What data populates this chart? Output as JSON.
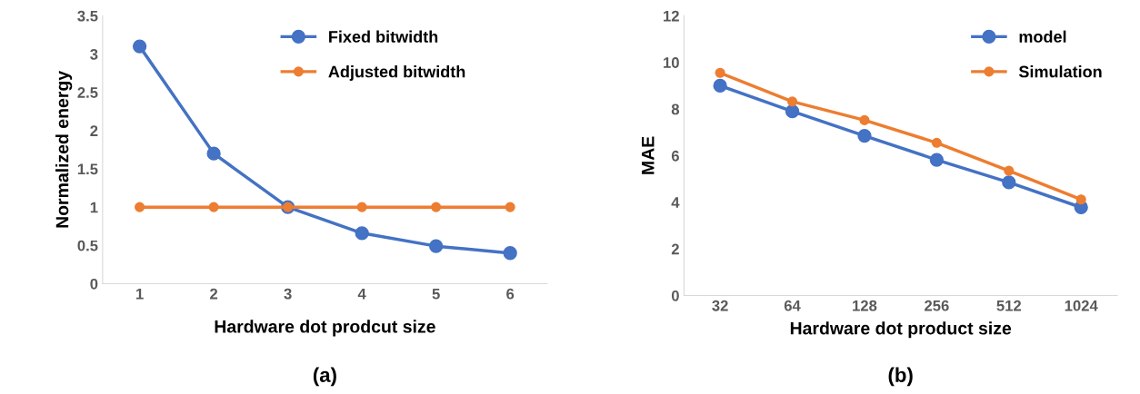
{
  "chart_data": [
    {
      "type": "line",
      "categories": [
        "1",
        "2",
        "3",
        "4",
        "5",
        "6"
      ],
      "xlabel": "Hardware dot prodcut size",
      "ylabel": "Normalized energy",
      "ylim": [
        0,
        3.5
      ],
      "yticks": [
        0,
        0.5,
        1,
        1.5,
        2,
        2.5,
        3,
        3.5
      ],
      "marker": "circle",
      "legend": "top right",
      "grid": false,
      "annotations": [
        "(a)"
      ],
      "series": [
        {
          "name": "Fixed bitwidth",
          "color": "#4472c4",
          "values": [
            3.1,
            1.7,
            1.0,
            0.66,
            0.49,
            0.4
          ]
        },
        {
          "name": "Adjusted bitwidth",
          "color": "#ed7d31",
          "values": [
            1,
            1,
            1,
            1,
            1,
            1
          ]
        }
      ]
    },
    {
      "type": "line",
      "categories": [
        "32",
        "64",
        "128",
        "256",
        "512",
        "1024"
      ],
      "xlabel": "Hardware dot product size",
      "ylabel": "MAE",
      "ylim": [
        0,
        12
      ],
      "yticks": [
        0,
        2,
        4,
        6,
        8,
        10,
        12
      ],
      "marker": "circle",
      "legend": "top right",
      "grid": false,
      "annotations": [
        "(b)"
      ],
      "series": [
        {
          "name": "model",
          "color": "#4472c4",
          "values": [
            9.0,
            7.9,
            6.85,
            5.82,
            4.85,
            3.78
          ]
        },
        {
          "name": "Simulation",
          "color": "#ed7d31",
          "values": [
            9.55,
            8.32,
            7.52,
            6.55,
            5.35,
            4.12
          ]
        }
      ]
    }
  ]
}
